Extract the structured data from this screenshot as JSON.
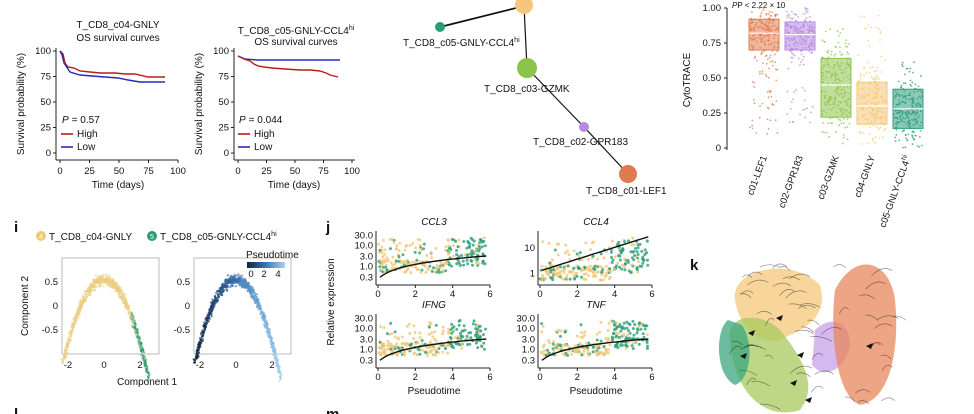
{
  "survival_plots": [
    {
      "title": "T_CD8_c04-GNLY",
      "subtitle": "OS survival curves",
      "p_label": "P",
      "p_value": "= 0.57",
      "ylabel": "Survival probability (%)",
      "xlabel": "Time (days)",
      "yticks": [
        "0",
        "25",
        "50",
        "75",
        "100"
      ],
      "xticks": [
        "0",
        "25",
        "50",
        "75",
        "100"
      ],
      "legend": [
        {
          "name": "High",
          "color": "#b81d1d"
        },
        {
          "name": "Low",
          "color": "#2a2ab8"
        }
      ]
    },
    {
      "title": "T_CD8_c05-GNLY-CCL4",
      "title_sup": "hi",
      "subtitle": "OS survival curves",
      "p_label": "P",
      "p_value": "= 0.044",
      "ylabel": "Survival probability (%)",
      "xlabel": "Time (days)",
      "yticks": [
        "0",
        "25",
        "50",
        "75",
        "100"
      ],
      "xticks": [
        "0",
        "25",
        "50",
        "75",
        "100"
      ],
      "legend": [
        {
          "name": "High",
          "color": "#b81d1d"
        },
        {
          "name": "Low",
          "color": "#2a2ab8"
        }
      ]
    }
  ],
  "trajectory": {
    "nodes": [
      {
        "label": "T_CD8_c05-GNLY-CCL4",
        "sup": "hi",
        "color": "#2a9d78"
      },
      {
        "label": "T_CD8_c03-GZMK",
        "color": "#8cc34a"
      },
      {
        "label": "T_CD8_c02-GPR183",
        "color": "#b58be0"
      },
      {
        "label": "T_CD8_c01-LEF1",
        "color": "#e07b4f"
      }
    ]
  },
  "cytotrace": {
    "p_text": "P < 2.22 × 10",
    "ylabel": "CytoTRACE",
    "yticks": [
      "0",
      "0.25",
      "0.50",
      "0.75",
      "1.00"
    ],
    "categories": [
      "c01-LEF1",
      "c02-GPR183",
      "c03-GZMK",
      "c04-GNLY",
      "c05-GNLY-CCL4"
    ],
    "last_sup": "hi",
    "colors": [
      "#e07b4f",
      "#b58be0",
      "#8cc34a",
      "#f6c77a",
      "#2a9d78"
    ]
  },
  "panel_i": {
    "letter": "i",
    "legend": [
      {
        "num": "4",
        "label": "T_CD8_c04-GNLY",
        "color": "#f0c878"
      },
      {
        "num": "5",
        "label": "T_CD8_c05-GNLY-CCL4",
        "sup": "hi",
        "color": "#2a9d78"
      }
    ],
    "ylabel": "Component 2",
    "xlabel": "Component 1",
    "yticks": [
      "-0.5",
      "0",
      "0.5"
    ],
    "xticks": [
      "-2",
      "0",
      "2"
    ],
    "pseudotime_label": "Pseudotime",
    "pseudotime_ticks": [
      "0",
      "2",
      "4"
    ]
  },
  "panel_j": {
    "letter": "j",
    "ylabel": "Relative expression",
    "xlabel": "Pseudotime",
    "genes": [
      "CCL3",
      "CCL4",
      "IFNG",
      "TNF"
    ],
    "yticks_a": [
      "30.0",
      "10.0",
      "3.0",
      "1.0",
      "0.3"
    ],
    "yticks_b": [
      "10",
      "1"
    ],
    "xticks": [
      "0",
      "2",
      "4",
      "6"
    ]
  },
  "panel_k": {
    "letter": "k"
  },
  "bottom_letters": [
    "l",
    "m"
  ]
}
